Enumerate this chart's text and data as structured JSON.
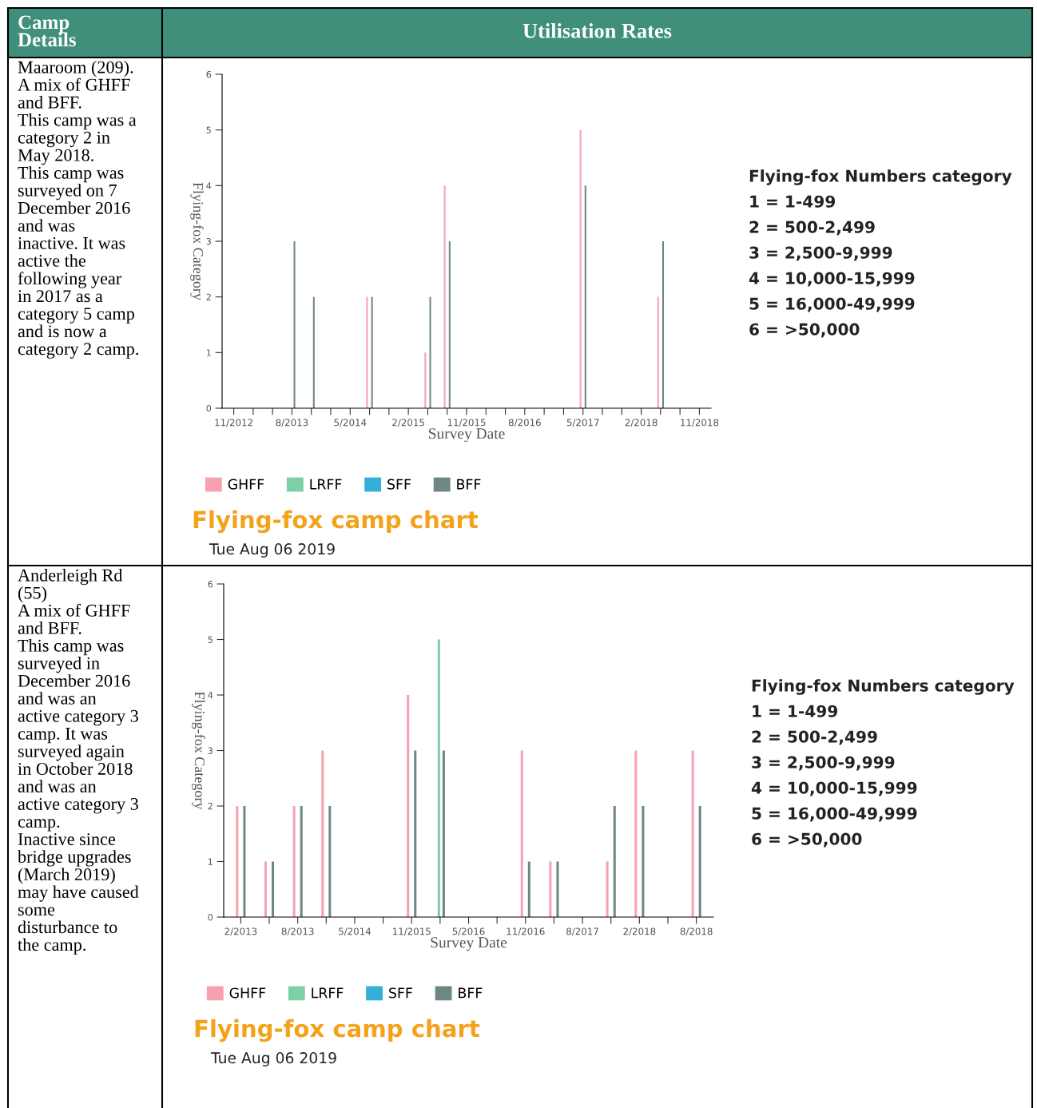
{
  "chart_data": [
    {
      "type": "bar",
      "title": "Flying-fox camp chart",
      "subtitle": "Tue Aug 06 2019",
      "xlabel": "Survey Date",
      "ylabel": "Flying-fox Category",
      "categories": [
        "11/2012",
        null,
        null,
        "8/2013",
        null,
        null,
        "5/2014",
        null,
        null,
        "2/2015",
        null,
        null,
        "11/2015",
        null,
        null,
        "8/2016",
        null,
        null,
        "5/2017",
        null,
        null,
        "2/2018",
        null,
        null,
        "11/2018"
      ],
      "series": [
        {
          "name": "GHFF",
          "color": "#f7a1b0",
          "values": [
            null,
            null,
            null,
            null,
            null,
            null,
            null,
            2,
            null,
            null,
            1,
            4,
            null,
            null,
            null,
            null,
            null,
            null,
            5,
            null,
            null,
            null,
            2,
            null,
            null
          ]
        },
        {
          "name": "LRFF",
          "color": "#7dcfa6",
          "values": [
            null,
            null,
            null,
            null,
            null,
            null,
            null,
            null,
            null,
            null,
            null,
            null,
            null,
            null,
            null,
            null,
            null,
            null,
            null,
            null,
            null,
            null,
            null,
            null,
            null
          ]
        },
        {
          "name": "SFF",
          "color": "#34b0d6",
          "values": [
            null,
            null,
            null,
            null,
            null,
            null,
            null,
            null,
            null,
            null,
            null,
            null,
            null,
            null,
            null,
            null,
            null,
            null,
            null,
            null,
            null,
            null,
            null,
            null,
            null
          ]
        },
        {
          "name": "BFF",
          "color": "#6e8784",
          "values": [
            null,
            null,
            null,
            3,
            2,
            null,
            null,
            2,
            null,
            null,
            2,
            3,
            null,
            null,
            null,
            null,
            null,
            null,
            4,
            null,
            null,
            null,
            3,
            null,
            null
          ]
        }
      ],
      "ylim": [
        0,
        6
      ],
      "yticks": [
        0,
        1,
        2,
        3,
        4,
        5,
        6
      ],
      "legend": "bottom",
      "annotations": [
        "Maaroom (209).\nA mix of GHFF and BFF.\nThis camp was a category 2 in May 2018.\nThis camp was surveyed on 7 December 2016 and was inactive. It was active the following year in 2017 as a category 5 camp and is now a category 2 camp.",
        "Flying-fox Numbers category",
        "1 = 1-499",
        "2 = 500-2,499",
        "3 = 2,500-9,999",
        "4 = 10,000-15,999",
        "5 = 16,000-49,999",
        "6 = >50,000",
        "Camp Details",
        "Utilisation Rates"
      ]
    },
    {
      "type": "bar",
      "title": "Flying-fox camp chart",
      "subtitle": "Tue Aug 06 2019",
      "xlabel": "Survey Date",
      "ylabel": "Flying-fox Category",
      "categories": [
        "2/2013",
        null,
        "8/2013",
        null,
        "5/2014",
        null,
        "11/2015",
        null,
        "5/2016",
        null,
        "11/2016",
        null,
        "8/2017",
        null,
        "2/2018",
        null,
        "8/2018"
      ],
      "series": [
        {
          "name": "GHFF",
          "color": "#f7a1b0",
          "values": [
            2,
            1,
            2,
            3,
            null,
            null,
            4,
            null,
            null,
            null,
            3,
            1,
            null,
            1,
            3,
            null,
            3
          ]
        },
        {
          "name": "LRFF",
          "color": "#7dcfa6",
          "values": [
            null,
            null,
            null,
            null,
            null,
            null,
            null,
            5,
            null,
            null,
            null,
            null,
            null,
            null,
            null,
            null,
            null
          ]
        },
        {
          "name": "SFF",
          "color": "#34b0d6",
          "values": [
            null,
            null,
            null,
            null,
            null,
            null,
            null,
            null,
            null,
            null,
            null,
            null,
            null,
            null,
            null,
            null,
            null
          ]
        },
        {
          "name": "BFF",
          "color": "#6e8784",
          "values": [
            2,
            1,
            2,
            2,
            null,
            null,
            3,
            3,
            null,
            null,
            1,
            1,
            null,
            2,
            2,
            null,
            2
          ]
        }
      ],
      "ylim": [
        0,
        6
      ],
      "yticks": [
        0,
        1,
        2,
        3,
        4,
        5,
        6
      ],
      "legend": "bottom",
      "annotations": [
        "Anderleigh Rd (55)\nA mix of GHFF and BFF.\nThis camp was surveyed in December 2016 and was an active category 3 camp. It was surveyed again in October 2018 and was an active category 3 camp.\nInactive since bridge upgrades (March 2019) may have caused some disturbance to the camp.",
        "Flying-fox Numbers category",
        "1 = 1-499",
        "2 = 500-2,499",
        "3 = 2,500-9,999",
        "4 = 10,000-15,999",
        "5 = 16,000-49,999",
        "6 = >50,000"
      ]
    }
  ]
}
